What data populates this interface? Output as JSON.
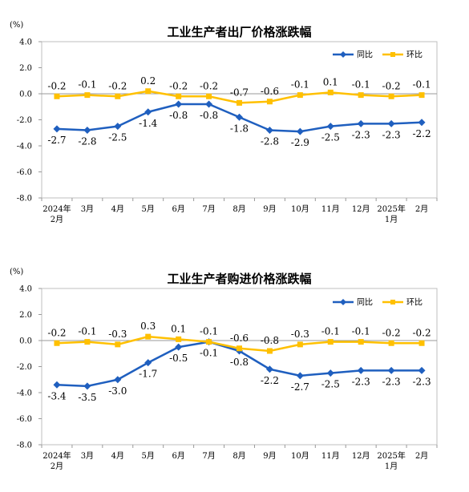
{
  "colors": {
    "yoy": "#1f5fbf",
    "mom": "#ffc000",
    "plot_bg": "#ffffff",
    "axis": "#999999",
    "grid": "#d9d9d9"
  },
  "chart_data": [
    {
      "type": "line",
      "title": "工业生产者出厂价格涨跌幅",
      "unit_label": "(%)",
      "categories": [
        "2024年\n2月",
        "3月",
        "4月",
        "5月",
        "6月",
        "7月",
        "8月",
        "9月",
        "10月",
        "11月",
        "12月",
        "2025年\n1月",
        "2月"
      ],
      "ylim": [
        -8.0,
        4.0
      ],
      "yticks": [
        "4.0",
        "2.0",
        "0.0",
        "-2.0",
        "-4.0",
        "-6.0",
        "-8.0"
      ],
      "ytick_values": [
        4,
        2,
        0,
        -2,
        -4,
        -6,
        -8
      ],
      "grid": false,
      "legend": "top-right",
      "series": [
        {
          "name": "同比",
          "color_key": "yoy",
          "values": [
            -2.7,
            -2.8,
            -2.5,
            -1.4,
            -0.8,
            -0.8,
            -1.8,
            -2.8,
            -2.9,
            -2.5,
            -2.3,
            -2.3,
            -2.2
          ],
          "labels": [
            "-2.7",
            "-2.8",
            "-2.5",
            "-1.4",
            "-0.8",
            "-0.8",
            "-1.8",
            "-2.8",
            "-2.9",
            "-2.5",
            "-2.3",
            "-2.3",
            "-2.2"
          ]
        },
        {
          "name": "环比",
          "color_key": "mom",
          "values": [
            -0.2,
            -0.1,
            -0.2,
            0.2,
            -0.2,
            -0.2,
            -0.7,
            -0.6,
            -0.1,
            0.1,
            -0.1,
            -0.2,
            -0.1
          ],
          "labels": [
            "-0.2",
            "-0.1",
            "-0.2",
            "0.2",
            "-0.2",
            "-0.2",
            "-0.7",
            "-0.6",
            "-0.1",
            "0.1",
            "-0.1",
            "-0.2",
            "-0.1"
          ]
        }
      ]
    },
    {
      "type": "line",
      "title": "工业生产者购进价格涨跌幅",
      "unit_label": "(%)",
      "categories": [
        "2024年\n2月",
        "3月",
        "4月",
        "5月",
        "6月",
        "7月",
        "8月",
        "9月",
        "10月",
        "11月",
        "12月",
        "2025年\n1月",
        "2月"
      ],
      "ylim": [
        -8.0,
        4.0
      ],
      "yticks": [
        "4.0",
        "2.0",
        "0.0",
        "-2.0",
        "-4.0",
        "-6.0",
        "-8.0"
      ],
      "ytick_values": [
        4,
        2,
        0,
        -2,
        -4,
        -6,
        -8
      ],
      "grid": false,
      "legend": "top-right",
      "series": [
        {
          "name": "同比",
          "color_key": "yoy",
          "values": [
            -3.4,
            -3.5,
            -3.0,
            -1.7,
            -0.5,
            -0.1,
            -0.8,
            -2.2,
            -2.7,
            -2.5,
            -2.3,
            -2.3,
            -2.3
          ],
          "labels": [
            "-3.4",
            "-3.5",
            "-3.0",
            "-1.7",
            "-0.5",
            "-0.1",
            "-0.8",
            "-2.2",
            "-2.7",
            "-2.5",
            "-2.3",
            "-2.3",
            "-2.3"
          ]
        },
        {
          "name": "环比",
          "color_key": "mom",
          "values": [
            -0.2,
            -0.1,
            -0.3,
            0.3,
            0.1,
            -0.1,
            -0.6,
            -0.8,
            -0.3,
            -0.1,
            -0.1,
            -0.2,
            -0.2
          ],
          "labels": [
            "-0.2",
            "-0.1",
            "-0.3",
            "0.3",
            "0.1",
            "-0.1",
            "-0.6",
            "-0.8",
            "-0.3",
            "-0.1",
            "-0.1",
            "-0.2",
            "-0.2"
          ]
        }
      ]
    }
  ]
}
